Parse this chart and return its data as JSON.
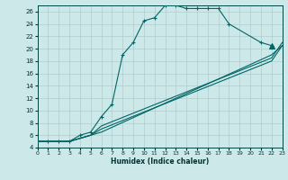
{
  "xlabel": "Humidex (Indice chaleur)",
  "bg_color": "#cde8e8",
  "grid_color": "#b0cccc",
  "line_color": "#006666",
  "xlim": [
    0,
    23
  ],
  "ylim": [
    4,
    27
  ],
  "xticks": [
    0,
    1,
    2,
    3,
    4,
    5,
    6,
    7,
    8,
    9,
    10,
    11,
    12,
    13,
    14,
    15,
    16,
    17,
    18,
    19,
    20,
    21,
    22,
    23
  ],
  "yticks": [
    4,
    6,
    8,
    10,
    12,
    14,
    16,
    18,
    20,
    22,
    24,
    26
  ],
  "main_x": [
    0,
    1,
    2,
    3,
    4,
    5,
    6,
    7,
    8,
    9,
    10,
    11,
    12,
    13,
    14,
    15,
    16,
    17,
    18,
    21,
    22
  ],
  "main_y": [
    5,
    5,
    5,
    5,
    6,
    6.5,
    9,
    11,
    19,
    21,
    24.5,
    25,
    27,
    27,
    26.5,
    26.5,
    26.5,
    26.5,
    24,
    21,
    20.5
  ],
  "line1_x": [
    0,
    3,
    5,
    6,
    22,
    23
  ],
  "line1_y": [
    5,
    5,
    6,
    6.5,
    19,
    20.5
  ],
  "line2_x": [
    0,
    3,
    5,
    6,
    22,
    23
  ],
  "line2_y": [
    5,
    5,
    6,
    7,
    18,
    20.5
  ],
  "line3_x": [
    0,
    3,
    5,
    6,
    22,
    23
  ],
  "line3_y": [
    5,
    5,
    6,
    7.5,
    18.5,
    21
  ]
}
